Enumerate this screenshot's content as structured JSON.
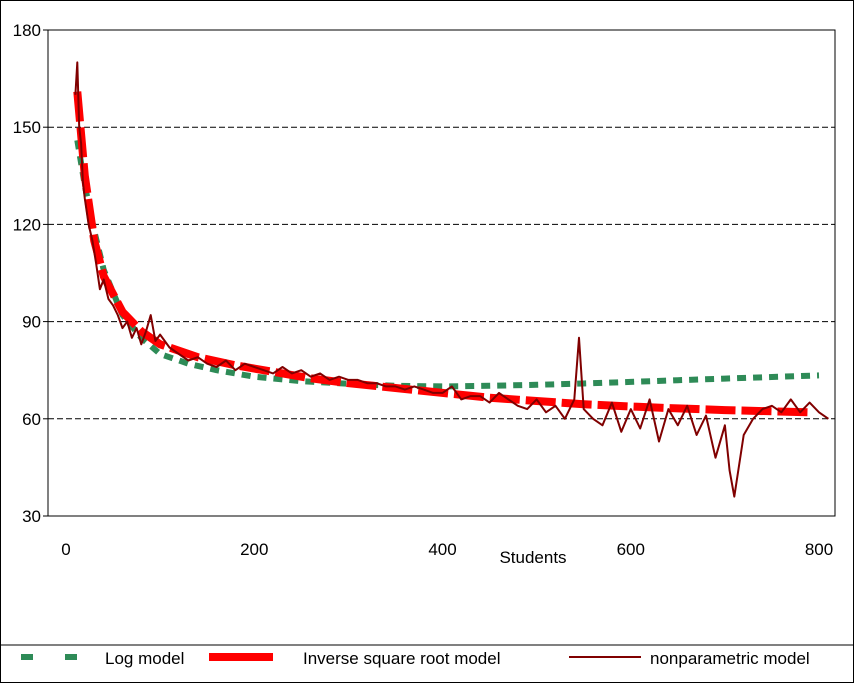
{
  "chart_data": {
    "type": "line",
    "title": "",
    "xlabel": "Students",
    "ylabel": "",
    "xlim": [
      0,
      820
    ],
    "ylim": [
      30,
      180
    ],
    "x_ticks": [
      0,
      200,
      400,
      600,
      800
    ],
    "y_ticks": [
      30,
      60,
      90,
      120,
      150,
      180
    ],
    "grid": "horizontal dashed",
    "legend_position": "bottom",
    "series": [
      {
        "name": "Log model",
        "style": "dashed-square",
        "color": "#2e8b57",
        "x": [
          12,
          20,
          30,
          40,
          60,
          80,
          100,
          130,
          160,
          200,
          250,
          300,
          350,
          400,
          450,
          500,
          550,
          600,
          650,
          700,
          750,
          800
        ],
        "y": [
          146,
          132,
          118,
          106,
          92,
          85,
          80,
          77,
          75,
          73,
          71.6,
          70.8,
          70.2,
          70.0,
          70.2,
          70.5,
          70.9,
          71.4,
          71.9,
          72.4,
          72.9,
          73.4
        ]
      },
      {
        "name": "Inverse square root model",
        "style": "thick-dashed",
        "color": "#ff0000",
        "x": [
          12,
          20,
          30,
          40,
          60,
          80,
          100,
          140,
          180,
          220,
          260,
          300,
          350,
          400,
          450,
          500,
          550,
          600,
          650,
          700,
          750,
          790
        ],
        "y": [
          161,
          135,
          115,
          104,
          93,
          87,
          83,
          79,
          76.5,
          74.5,
          72.5,
          71,
          69.5,
          68,
          66.5,
          65.5,
          64.5,
          63.8,
          63.2,
          62.7,
          62.3,
          62.0
        ]
      },
      {
        "name": "nonparametric model",
        "style": "line",
        "color": "#800000",
        "x": [
          10,
          12,
          14,
          16,
          18,
          20,
          24,
          28,
          32,
          36,
          40,
          45,
          50,
          55,
          60,
          65,
          70,
          75,
          80,
          85,
          90,
          95,
          100,
          110,
          120,
          130,
          140,
          150,
          160,
          170,
          180,
          190,
          200,
          210,
          220,
          230,
          240,
          250,
          260,
          270,
          280,
          290,
          300,
          310,
          320,
          330,
          340,
          350,
          360,
          370,
          380,
          390,
          400,
          410,
          420,
          430,
          440,
          450,
          460,
          470,
          480,
          490,
          500,
          510,
          520,
          530,
          540,
          545,
          550,
          560,
          570,
          580,
          590,
          600,
          610,
          620,
          630,
          640,
          650,
          660,
          670,
          680,
          690,
          700,
          705,
          710,
          720,
          730,
          740,
          750,
          760,
          770,
          780,
          790,
          800,
          810
        ],
        "y": [
          160,
          170,
          150,
          145,
          133,
          128,
          120,
          115,
          108,
          100,
          103,
          97,
          95,
          92,
          88,
          90,
          85,
          88,
          83,
          87,
          92,
          84,
          86,
          82,
          80,
          78,
          79,
          77,
          76,
          78,
          75,
          77,
          76,
          75,
          74,
          76,
          74,
          75,
          73,
          74,
          72,
          73,
          72,
          72,
          71,
          71,
          70,
          70,
          69,
          70,
          69,
          68,
          68,
          70,
          66,
          67,
          67,
          65,
          68,
          66,
          64,
          63,
          66,
          62,
          64,
          60,
          66,
          85,
          63,
          60,
          58,
          65,
          56,
          63,
          57,
          66,
          53,
          63,
          58,
          64,
          55,
          61,
          48,
          58,
          44,
          36,
          55,
          60,
          63,
          64,
          62,
          66,
          62,
          65,
          62,
          60
        ]
      }
    ]
  }
}
